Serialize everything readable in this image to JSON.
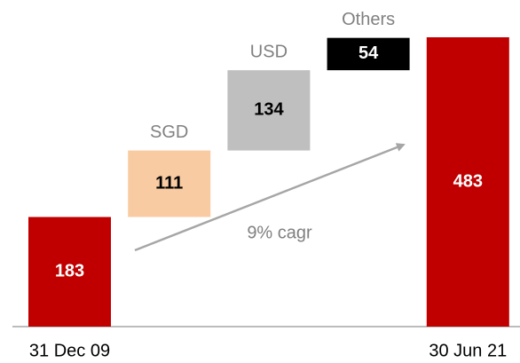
{
  "chart_data": {
    "type": "waterfall",
    "categories": [
      "31 Dec 09",
      "SGD",
      "USD",
      "Others",
      "30 Jun 21"
    ],
    "values": [
      183,
      111,
      134,
      54,
      483
    ],
    "colors": [
      "#c00000",
      "#f8cba2",
      "#bfbfbf",
      "#000000",
      "#c00000"
    ],
    "annotation": "9% cagr"
  }
}
